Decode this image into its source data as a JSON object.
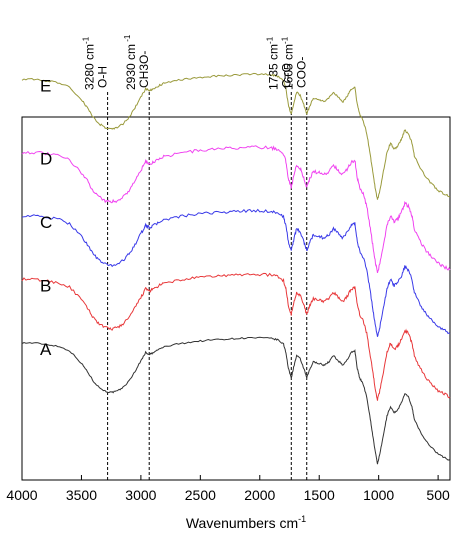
{
  "chart_data": {
    "type": "line",
    "title": "",
    "xlabel": "Wavenumbers cm",
    "xlabel_superscript": "-1",
    "ylabel": "",
    "xlim": [
      4000,
      400
    ],
    "x_reversed": true,
    "x_ticks": [
      4000,
      3500,
      3000,
      2500,
      2000,
      1500,
      1000,
      500
    ],
    "x_tick_labels": [
      "4000",
      "3500",
      "3000",
      "2500",
      "2000",
      "1500",
      "1000",
      "500"
    ],
    "grid": false,
    "legend": "none",
    "ylim": [
      0,
      5.4
    ],
    "series_labels": [
      "A",
      "B",
      "C",
      "D",
      "E"
    ],
    "x": [
      4000,
      3900,
      3800,
      3700,
      3600,
      3500,
      3450,
      3400,
      3350,
      3300,
      3250,
      3200,
      3150,
      3100,
      3050,
      3000,
      2960,
      2930,
      2900,
      2850,
      2800,
      2700,
      2600,
      2500,
      2400,
      2300,
      2200,
      2100,
      2000,
      1900,
      1850,
      1800,
      1780,
      1760,
      1735,
      1715,
      1690,
      1660,
      1630,
      1605,
      1580,
      1550,
      1500,
      1460,
      1420,
      1380,
      1340,
      1300,
      1260,
      1230,
      1200,
      1180,
      1160,
      1130,
      1100,
      1070,
      1050,
      1030,
      1010,
      990,
      960,
      930,
      900,
      870,
      840,
      810,
      780,
      750,
      720,
      700,
      650,
      600,
      550,
      500,
      450,
      400
    ],
    "base_profile": [
      2.0,
      2.0,
      1.98,
      1.95,
      1.88,
      1.68,
      1.55,
      1.4,
      1.3,
      1.24,
      1.22,
      1.24,
      1.3,
      1.4,
      1.55,
      1.72,
      1.85,
      1.82,
      1.84,
      1.9,
      1.94,
      1.98,
      2.01,
      2.03,
      2.05,
      2.06,
      2.07,
      2.08,
      2.08,
      2.07,
      2.05,
      1.98,
      1.85,
      1.6,
      1.45,
      1.62,
      1.8,
      1.75,
      1.6,
      1.45,
      1.58,
      1.7,
      1.68,
      1.65,
      1.7,
      1.8,
      1.72,
      1.65,
      1.75,
      1.85,
      1.88,
      1.6,
      1.45,
      1.35,
      1.15,
      0.8,
      0.55,
      0.3,
      0.1,
      0.25,
      0.55,
      0.85,
      1.0,
      0.9,
      0.95,
      1.05,
      1.2,
      1.15,
      1.0,
      0.8,
      0.6,
      0.45,
      0.35,
      0.25,
      0.2,
      0.15
    ],
    "series": [
      {
        "label": "A",
        "color": "#333333",
        "offset": 0.0,
        "noise": 0.012
      },
      {
        "label": "B",
        "color": "#e8383a",
        "offset": 1.0,
        "noise": 0.022
      },
      {
        "label": "C",
        "color": "#3a3ae8",
        "offset": 2.0,
        "noise": 0.022
      },
      {
        "label": "D",
        "color": "#f044f0",
        "offset": 3.0,
        "noise": 0.025
      },
      {
        "label": "E",
        "color": "#9a9a3c",
        "offset": 4.15,
        "noise": 0.015
      }
    ],
    "annotations": [
      {
        "x": 3280,
        "line1": "3280 cm",
        "line1_sup": "-1",
        "line2": "O-H"
      },
      {
        "x": 2930,
        "line1": "2930 cm",
        "line1_sup": " -1",
        "line2": "CH3O-"
      },
      {
        "x": 1735,
        "line1": "1735 cm",
        "line1_sup": "-1",
        "line2": "C=O"
      },
      {
        "x": 1605,
        "line1": "1605 cm",
        "line1_sup": "-1",
        "line2": "COO-"
      }
    ]
  }
}
